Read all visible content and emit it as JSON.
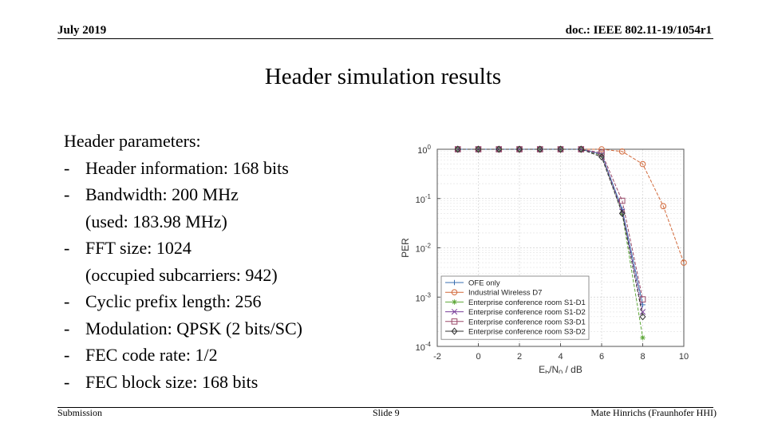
{
  "header": {
    "date": "July 2019",
    "doc": "doc.: IEEE 802.11-19/1054r1"
  },
  "title": "Header simulation results",
  "params": {
    "heading": "Header parameters:",
    "items": [
      {
        "dash": "-",
        "text": "Header information: 168 bits"
      },
      {
        "dash": "-",
        "text": "Bandwidth: 200 MHz",
        "sub": "(used: 183.98 MHz)"
      },
      {
        "dash": "-",
        "text": "FFT size: 1024",
        "sub": "(occupied subcarriers: 942)"
      },
      {
        "dash": "-",
        "text": "Cyclic prefix length: 256"
      },
      {
        "dash": "-",
        "text": "Modulation: QPSK (2 bits/SC)"
      },
      {
        "dash": "-",
        "text": "FEC code rate: 1/2"
      },
      {
        "dash": "-",
        "text": "FEC block size: 168 bits"
      }
    ]
  },
  "footer": {
    "left": "Submission",
    "mid": "Slide 9",
    "right": "Mate Hinrichs (Fraunhofer HHI)"
  },
  "chart_data": {
    "type": "line",
    "xlabel_main": "E",
    "xlabel_sub1": "b",
    "xlabel_mid": "/N",
    "xlabel_sub2": "0",
    "xlabel_tail": " / dB",
    "ylabel": "PER",
    "xlim": [
      -2,
      10
    ],
    "ylim": [
      0.0001,
      1
    ],
    "yscale": "log",
    "xticks": [
      -2,
      0,
      2,
      4,
      6,
      8,
      10
    ],
    "xtick_labels": [
      "-2",
      "0",
      "2",
      "4",
      "6",
      "8",
      "10"
    ],
    "yticks": [
      1,
      0.1,
      0.01,
      0.001,
      0.0001
    ],
    "ytick_exps": [
      "0",
      "-1",
      "-2",
      "-3",
      "-4"
    ],
    "ytick_base": "10",
    "grid": true,
    "legend_position": "bottom-left",
    "series": [
      {
        "name": "OFE only",
        "color": "#3a6fb0",
        "marker": "plus",
        "x": [
          -1,
          0,
          1,
          2,
          3,
          4,
          5,
          6,
          7,
          8
        ],
        "y": [
          1,
          1,
          1,
          1,
          1,
          1,
          1,
          0.8,
          0.06,
          0.0007
        ]
      },
      {
        "name": "Industrial Wireless D7",
        "color": "#d2693a",
        "marker": "circle",
        "x": [
          -1,
          0,
          1,
          2,
          3,
          4,
          5,
          6,
          7,
          8,
          9,
          10
        ],
        "y": [
          1,
          1,
          1,
          1,
          1,
          1,
          1,
          1,
          0.9,
          0.5,
          0.07,
          0.005
        ]
      },
      {
        "name": "Enterprise conference room S1-D1",
        "color": "#5fa83a",
        "marker": "star",
        "x": [
          -1,
          0,
          1,
          2,
          3,
          4,
          5,
          6,
          7,
          8
        ],
        "y": [
          1,
          1,
          1,
          1,
          1,
          1,
          1,
          0.75,
          0.05,
          0.00015
        ]
      },
      {
        "name": "Enterprise conference room S1-D2",
        "color": "#7a3f9a",
        "marker": "x",
        "x": [
          -1,
          0,
          1,
          2,
          3,
          4,
          5,
          6,
          7,
          8
        ],
        "y": [
          1,
          1,
          1,
          1,
          1,
          1,
          1,
          0.78,
          0.055,
          0.0005
        ]
      },
      {
        "name": "Enterprise conference room S3-D1",
        "color": "#9a4a6a",
        "marker": "square",
        "x": [
          -1,
          0,
          1,
          2,
          3,
          4,
          5,
          6,
          7,
          8
        ],
        "y": [
          1,
          1,
          1,
          1,
          1,
          1,
          1,
          0.85,
          0.09,
          0.0009
        ]
      },
      {
        "name": "Enterprise conference room S3-D2",
        "color": "#333333",
        "marker": "diamond",
        "x": [
          -1,
          0,
          1,
          2,
          3,
          4,
          5,
          6,
          7,
          8
        ],
        "y": [
          1,
          1,
          1,
          1,
          1,
          1,
          1,
          0.7,
          0.05,
          0.0004
        ]
      }
    ]
  }
}
